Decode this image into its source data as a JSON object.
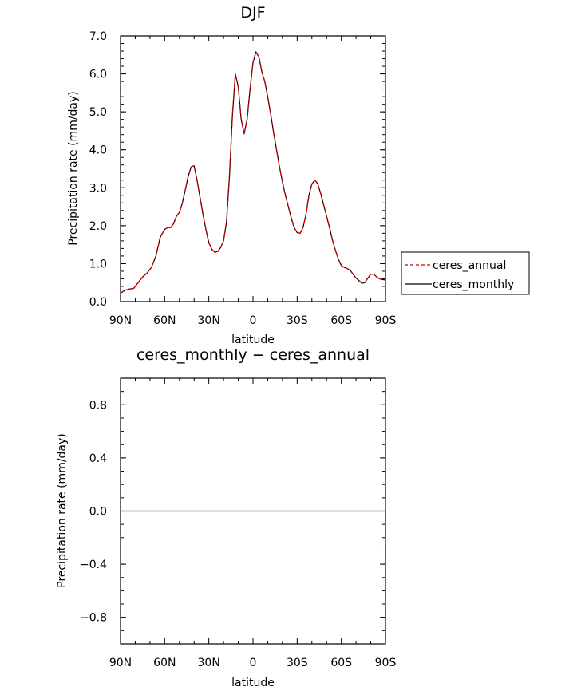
{
  "chart_data": [
    {
      "type": "line",
      "title": "DJF",
      "xlabel": "latitude",
      "ylabel": "Precipitation rate (mm/day)",
      "xlim": [
        90,
        -90
      ],
      "ylim": [
        0,
        7
      ],
      "x_ticks": [
        90,
        60,
        30,
        0,
        -30,
        -60,
        -90
      ],
      "x_tick_labels": [
        "90N",
        "60N",
        "30N",
        "0",
        "30S",
        "60S",
        "90S"
      ],
      "y_ticks": [
        0,
        1,
        2,
        3,
        4,
        5,
        6,
        7
      ],
      "y_tick_labels": [
        "0.0",
        "1.0",
        "2.0",
        "3.0",
        "4.0",
        "5.0",
        "6.0",
        "7.0"
      ],
      "legend_position": "right",
      "x": [
        90,
        87,
        84,
        81,
        78,
        75,
        72,
        69,
        66,
        63,
        60,
        58,
        56,
        54,
        52,
        50,
        48,
        46,
        44,
        42,
        40,
        38,
        36,
        34,
        32,
        30,
        28,
        26,
        24,
        22,
        20,
        18,
        16,
        14,
        12,
        10,
        8,
        6,
        4,
        2,
        0,
        -2,
        -4,
        -6,
        -8,
        -10,
        -12,
        -14,
        -16,
        -18,
        -20,
        -22,
        -24,
        -26,
        -28,
        -30,
        -32,
        -34,
        -36,
        -38,
        -40,
        -42,
        -44,
        -46,
        -48,
        -50,
        -52,
        -54,
        -56,
        -58,
        -60,
        -62,
        -64,
        -66,
        -68,
        -70,
        -72,
        -74,
        -76,
        -78,
        -80,
        -82,
        -84,
        -86,
        -88,
        -90
      ],
      "series": [
        {
          "name": "ceres_annual",
          "color": "#cc0000",
          "dash": "dashed",
          "values": [
            0.22,
            0.3,
            0.33,
            0.35,
            0.5,
            0.65,
            0.75,
            0.9,
            1.2,
            1.7,
            1.9,
            1.95,
            1.95,
            2.05,
            2.25,
            2.35,
            2.6,
            2.95,
            3.3,
            3.55,
            3.58,
            3.2,
            2.75,
            2.3,
            1.9,
            1.55,
            1.38,
            1.3,
            1.32,
            1.42,
            1.6,
            2.1,
            3.3,
            4.9,
            6.0,
            5.65,
            4.8,
            4.42,
            4.8,
            5.6,
            6.3,
            6.58,
            6.45,
            6.05,
            5.8,
            5.4,
            4.95,
            4.45,
            4.0,
            3.55,
            3.15,
            2.8,
            2.5,
            2.2,
            1.95,
            1.82,
            1.8,
            1.95,
            2.3,
            2.8,
            3.1,
            3.2,
            3.1,
            2.85,
            2.55,
            2.25,
            1.95,
            1.62,
            1.35,
            1.12,
            0.95,
            0.9,
            0.87,
            0.83,
            0.72,
            0.62,
            0.55,
            0.48,
            0.5,
            0.62,
            0.72,
            0.72,
            0.65,
            0.6,
            0.58,
            0.57
          ]
        },
        {
          "name": "ceres_monthly",
          "color": "#000000",
          "dash": "solid",
          "values": [
            0.22,
            0.3,
            0.33,
            0.35,
            0.5,
            0.65,
            0.75,
            0.9,
            1.2,
            1.7,
            1.9,
            1.95,
            1.95,
            2.05,
            2.25,
            2.35,
            2.6,
            2.95,
            3.3,
            3.55,
            3.58,
            3.2,
            2.75,
            2.3,
            1.9,
            1.55,
            1.38,
            1.3,
            1.32,
            1.42,
            1.6,
            2.1,
            3.3,
            4.9,
            6.0,
            5.65,
            4.8,
            4.42,
            4.8,
            5.6,
            6.3,
            6.58,
            6.45,
            6.05,
            5.8,
            5.4,
            4.95,
            4.45,
            4.0,
            3.55,
            3.15,
            2.8,
            2.5,
            2.2,
            1.95,
            1.82,
            1.8,
            1.95,
            2.3,
            2.8,
            3.1,
            3.2,
            3.1,
            2.85,
            2.55,
            2.25,
            1.95,
            1.62,
            1.35,
            1.12,
            0.95,
            0.9,
            0.87,
            0.83,
            0.72,
            0.62,
            0.55,
            0.48,
            0.5,
            0.62,
            0.72,
            0.72,
            0.65,
            0.6,
            0.58,
            0.57
          ]
        }
      ]
    },
    {
      "type": "line",
      "title": "ceres_monthly − ceres_annual",
      "xlabel": "latitude",
      "ylabel": "Precipitation rate (mm/day)",
      "xlim": [
        90,
        -90
      ],
      "ylim": [
        -1,
        1
      ],
      "x_ticks": [
        90,
        60,
        30,
        0,
        -30,
        -60,
        -90
      ],
      "x_tick_labels": [
        "90N",
        "60N",
        "30N",
        "0",
        "30S",
        "60S",
        "90S"
      ],
      "y_ticks": [
        -0.8,
        -0.4,
        0,
        0.4,
        0.8
      ],
      "y_tick_labels": [
        "−0.8",
        "−0.4",
        "0.0",
        "0.4",
        "0.8"
      ],
      "x": [
        90,
        -90
      ],
      "series": [
        {
          "color": "#000000",
          "values": [
            0,
            0
          ]
        }
      ]
    }
  ]
}
